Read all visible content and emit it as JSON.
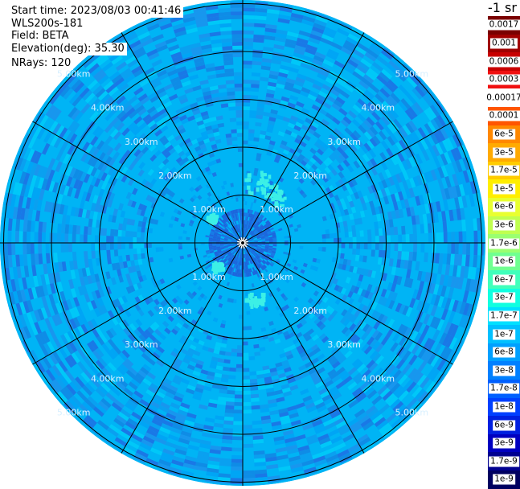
{
  "header": {
    "start_time": "Start time: 2023/08/03 00:41:46",
    "instrument": "WLS200s-181",
    "field": "Field: BETA",
    "elevation": "Elevation(deg): 35.30",
    "nrays": "NRays: 120"
  },
  "colorbar": {
    "units": "-1 sr",
    "labels": [
      "0.0017",
      "0.001",
      "0.0006",
      "0.0003",
      "0.00017",
      "0.0001",
      "6e-5",
      "3e-5",
      "1.7e-5",
      "1e-5",
      "6e-6",
      "3e-6",
      "1.7e-6",
      "1e-6",
      "6e-7",
      "3e-7",
      "1.7e-7",
      "1e-7",
      "6e-8",
      "3e-8",
      "1.7e-8",
      "1e-8",
      "6e-9",
      "3e-9",
      "1.7e-9",
      "1e-9"
    ],
    "colors": [
      "#7a0000",
      "#a00000",
      "#c80000",
      "#f01010",
      "#ffffff",
      "#ff5500",
      "#ff8800",
      "#ffaa00",
      "#ffcc00",
      "#ffee00",
      "#e8ff30",
      "#c0ff50",
      "#9aff70",
      "#70ff90",
      "#40ffbb",
      "#10ffe0",
      "#00e0ff",
      "#00c0ff",
      "#00a0ff",
      "#0080ff",
      "#0060ff",
      "#0040ff",
      "#0020e0",
      "#0000c0",
      "#000090",
      "#000060"
    ]
  },
  "chart_data": {
    "type": "heatmap",
    "projection": "polar",
    "field": "BETA",
    "nrays": 120,
    "range_rings_km": [
      1.0,
      2.0,
      3.0,
      4.0,
      5.0
    ],
    "ring_labels": [
      "1.00km",
      "2.00km",
      "3.00km",
      "4.00km",
      "5.00km"
    ],
    "max_range_km": 5.0,
    "radial_count": 12,
    "dominant_value_band": [
      "6e-8",
      "1e-7"
    ],
    "colors": {
      "background_field": "#00b4f5",
      "dark_field": "#1a78e6",
      "inner_core": "#1e64dc",
      "bright_patch": "#3cf0e6",
      "grid": "#000000",
      "ring_label": "#d8f0ff"
    }
  }
}
